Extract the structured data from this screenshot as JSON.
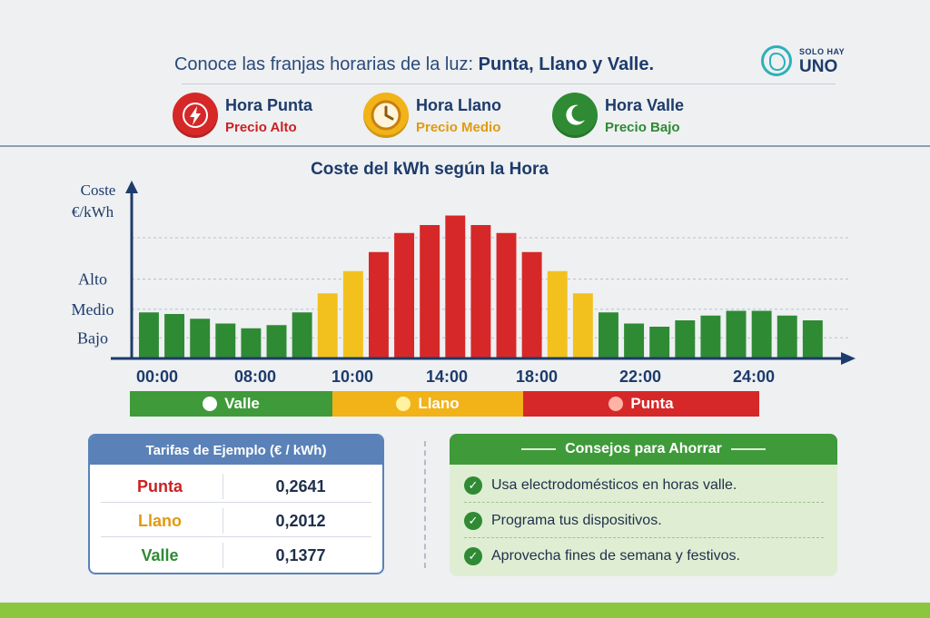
{
  "header": {
    "intro": "Conoce las franjas horarias de la luz: ",
    "emph": "Punta, Llano y Valle.",
    "logo_small": "SOLO HAY",
    "logo_big": "UNO"
  },
  "legend": [
    {
      "label": "Hora Punta",
      "sub": "Precio Alto",
      "color": "#d62828",
      "icon": "lightning-icon"
    },
    {
      "label": "Hora Llano",
      "sub": "Precio Medio",
      "color": "#f2b318",
      "icon": "clock-icon"
    },
    {
      "label": "Hora Valle",
      "sub": "Precio Bajo",
      "color": "#2f8a34",
      "icon": "moon-icon"
    }
  ],
  "chart_data": {
    "type": "bar",
    "title": "Coste del kWh según la Hora",
    "ylabel": "Coste €/kWh",
    "ytick_labels": [
      "Bajo",
      "Medio",
      "Alto"
    ],
    "xtick_labels": [
      "00:00",
      "08:00",
      "10:00",
      "14:00",
      "18:00",
      "22:00",
      "24:00"
    ],
    "ylim": [
      0,
      10
    ],
    "grid": true,
    "values": [
      2.9,
      2.8,
      2.5,
      2.2,
      1.9,
      2.1,
      2.9,
      4.1,
      5.5,
      6.7,
      7.9,
      8.4,
      9.0,
      8.4,
      7.9,
      6.7,
      5.5,
      4.1,
      2.9,
      2.2,
      2.0,
      2.4,
      2.7,
      3.0,
      3.0,
      2.7,
      2.4
    ],
    "categories_color": [
      "valle",
      "valle",
      "valle",
      "valle",
      "valle",
      "valle",
      "valle",
      "llano",
      "llano",
      "punta",
      "punta",
      "punta",
      "punta",
      "punta",
      "punta",
      "punta",
      "llano",
      "llano",
      "valle",
      "valle",
      "valle",
      "valle",
      "valle",
      "valle",
      "valle",
      "valle",
      "valle"
    ],
    "colors": {
      "valle": "#2f8a34",
      "llano": "#f2c11d",
      "punta": "#d62828"
    }
  },
  "bands": [
    {
      "label": "Valle",
      "color": "#3f9a3a"
    },
    {
      "label": "Llano",
      "color": "#f2b318"
    },
    {
      "label": "Punta",
      "color": "#d62828"
    }
  ],
  "tariffs": {
    "title": "Tarifas de Ejemplo (€ / kWh)",
    "rows": [
      {
        "name": "Punta",
        "value": "0,2641",
        "color": "#c92222"
      },
      {
        "name": "Llano",
        "value": "0,2012",
        "color": "#e09a10"
      },
      {
        "name": "Valle",
        "value": "0,1377",
        "color": "#2f8a34"
      }
    ]
  },
  "tips": {
    "title": "Consejos para Ahorrar",
    "items": [
      "Usa electrodomésticos en horas valle.",
      "Programa tus dispositivos.",
      "Aprovecha fines de semana y festivos."
    ]
  }
}
